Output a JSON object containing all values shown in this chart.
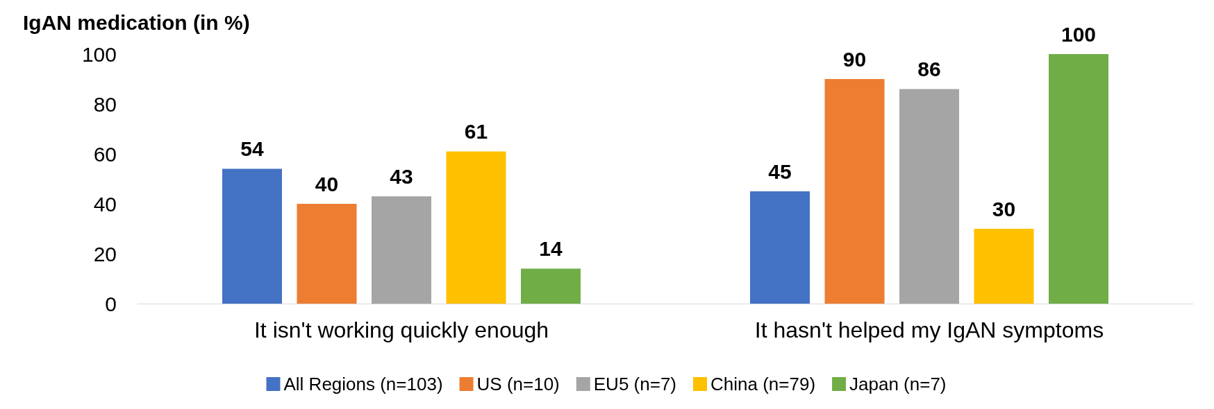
{
  "chart_data": {
    "type": "bar",
    "title": "IgAN medication (in %)",
    "categories": [
      "It isn't working quickly enough",
      "It hasn't helped my IgAN symptoms"
    ],
    "series": [
      {
        "name": "All Regions (n=103)",
        "color": "#4472c4",
        "values": [
          54,
          45
        ]
      },
      {
        "name": "US (n=10)",
        "color": "#ed7d31",
        "values": [
          40,
          90
        ]
      },
      {
        "name": "EU5 (n=7)",
        "color": "#a5a5a5",
        "values": [
          43,
          86
        ]
      },
      {
        "name": "China (n=79)",
        "color": "#ffc000",
        "values": [
          61,
          30
        ]
      },
      {
        "name": "Japan (n=7)",
        "color": "#70ad47",
        "values": [
          14,
          100
        ]
      }
    ],
    "ylim": [
      0,
      100
    ],
    "yticks": [
      0,
      20,
      40,
      60,
      80,
      100
    ],
    "grid": false,
    "legend": "bottom",
    "data_labels": true
  }
}
